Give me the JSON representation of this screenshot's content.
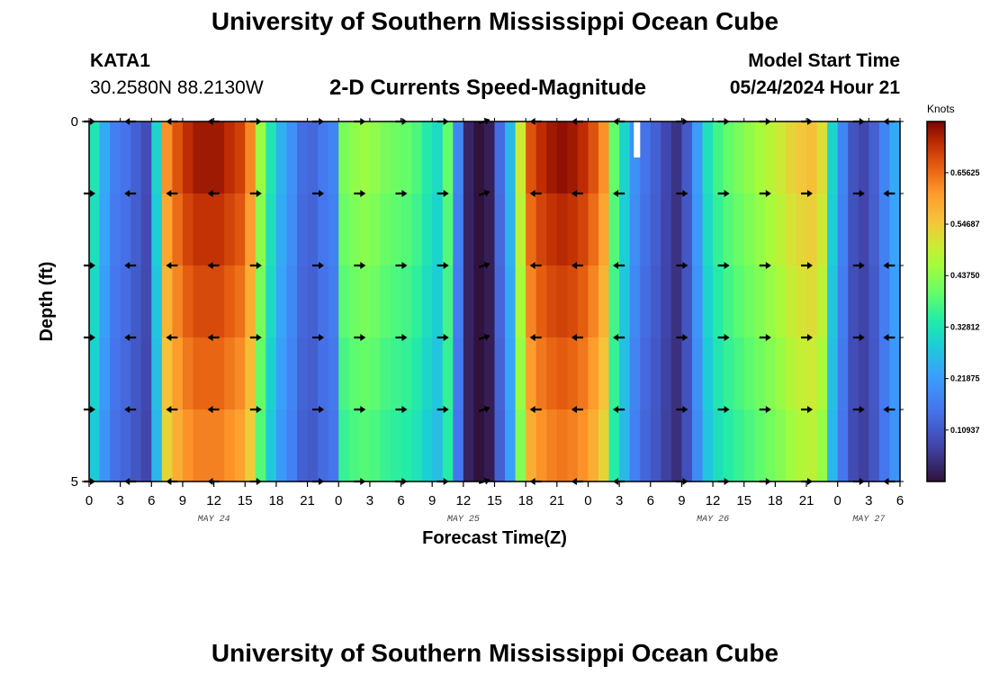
{
  "header": {
    "title": "University of Southern Mississippi Ocean Cube",
    "station": "KATA1",
    "coords": "30.2580N  88.2130W",
    "subtitle": "2-D Currents Speed-Magnitude",
    "model_start_label": "Model Start Time",
    "model_start_value": "05/24/2024 Hour 21"
  },
  "footer": {
    "title": "University of Southern Mississippi Ocean Cube"
  },
  "chart_data": {
    "type": "heatmap",
    "title": "2-D Currents Speed-Magnitude",
    "xlabel": "Forecast Time(Z)",
    "ylabel": "Depth (ft)",
    "colorbar_label": "Knots",
    "colorbar_range": [
      0.0,
      0.765
    ],
    "colorbar_ticks": [
      "0.10937",
      "0.21875",
      "0.32812",
      "0.43750",
      "0.54687",
      "0.65625"
    ],
    "colorbar_tick_values": [
      0.10937,
      0.21875,
      0.32812,
      0.4375,
      0.54687,
      0.65625
    ],
    "y_range": [
      0,
      5
    ],
    "y_ticks": [
      "0",
      "5"
    ],
    "x_hours_range": [
      0,
      78
    ],
    "x_tick_labels": [
      "0",
      "3",
      "6",
      "9",
      "12",
      "15",
      "18",
      "21",
      "0",
      "3",
      "6",
      "9",
      "12",
      "15",
      "18",
      "21",
      "0",
      "3",
      "6",
      "9",
      "12",
      "15",
      "18",
      "21",
      "0",
      "3",
      "6"
    ],
    "day_labels": [
      {
        "label": "MAY 24",
        "hour": 12
      },
      {
        "label": "MAY 25",
        "hour": 36
      },
      {
        "label": "MAY 26",
        "hour": 60
      },
      {
        "label": "MAY 27",
        "hour": 75
      }
    ],
    "speed_hourly": [
      0.33,
      0.24,
      0.17,
      0.15,
      0.12,
      0.09,
      0.3,
      0.62,
      0.68,
      0.72,
      0.74,
      0.74,
      0.74,
      0.72,
      0.7,
      0.63,
      0.45,
      0.33,
      0.25,
      0.2,
      0.14,
      0.13,
      0.16,
      0.18,
      0.42,
      0.44,
      0.45,
      0.44,
      0.42,
      0.41,
      0.4,
      0.38,
      0.34,
      0.31,
      0.4,
      0.18,
      0.03,
      0.0,
      0.02,
      0.14,
      0.26,
      0.5,
      0.68,
      0.72,
      0.74,
      0.75,
      0.74,
      0.72,
      0.68,
      0.62,
      0.4,
      0.3,
      0.2,
      0.15,
      0.12,
      0.08,
      0.05,
      0.11,
      0.22,
      0.32,
      0.37,
      0.4,
      0.42,
      0.44,
      0.46,
      0.48,
      0.5,
      0.53,
      0.55,
      0.56,
      0.52,
      0.3,
      0.18,
      0.1,
      0.08,
      0.12,
      0.18,
      0.24
    ],
    "vector_depths": [
      0,
      1,
      2,
      3,
      4,
      5
    ],
    "vectors": [
      {
        "hour": 0,
        "dir": "E"
      },
      {
        "hour": 4,
        "dir": "W"
      },
      {
        "hour": 8,
        "dir": "W"
      },
      {
        "hour": 12,
        "dir": "W"
      },
      {
        "hour": 16,
        "dir": "E"
      },
      {
        "hour": 22,
        "dir": "E"
      },
      {
        "hour": 26,
        "dir": "E"
      },
      {
        "hour": 30,
        "dir": "E"
      },
      {
        "hour": 34,
        "dir": "E"
      },
      {
        "hour": 38,
        "dir": "NE"
      },
      {
        "hour": 43,
        "dir": "W"
      },
      {
        "hour": 47,
        "dir": "W"
      },
      {
        "hour": 51,
        "dir": "W"
      },
      {
        "hour": 57,
        "dir": "E"
      },
      {
        "hour": 61,
        "dir": "E"
      },
      {
        "hour": 65,
        "dir": "E"
      },
      {
        "hour": 69,
        "dir": "E"
      },
      {
        "hour": 74,
        "dir": "E"
      },
      {
        "hour": 77,
        "dir": "W"
      }
    ]
  }
}
